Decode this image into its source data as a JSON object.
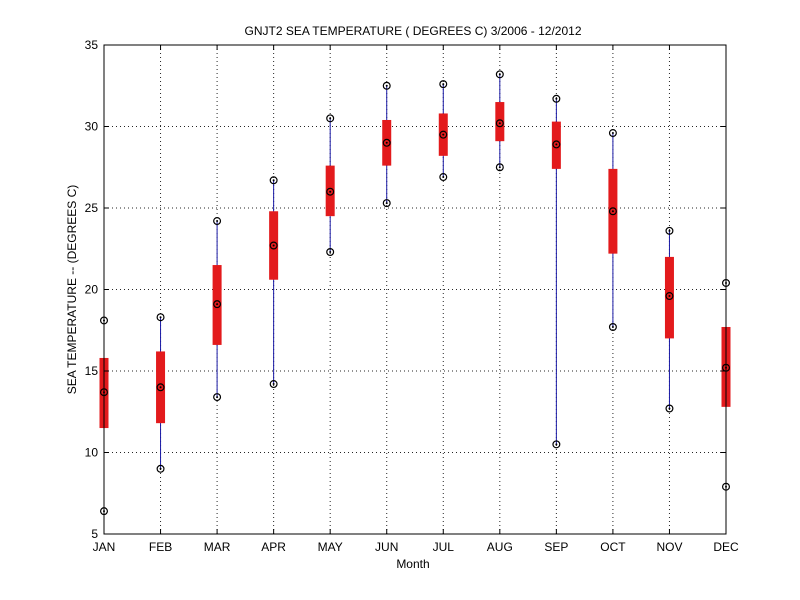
{
  "chart_data": {
    "type": "box",
    "title": "GNJT2  SEA TEMPERATURE ( DEGREES C) 3/2006 - 12/2012",
    "xlabel": "Month",
    "ylabel": "SEA TEMPERATURE -- (DEGREES C)",
    "ylim": [
      5,
      35
    ],
    "yticks": [
      "5",
      "10",
      "15",
      "20",
      "25",
      "30",
      "35"
    ],
    "grid": true,
    "categories": [
      "JAN",
      "FEB",
      "MAR",
      "APR",
      "MAY",
      "JUN",
      "JUL",
      "AUG",
      "SEP",
      "OCT",
      "NOV",
      "DEC"
    ],
    "series": [
      {
        "min": [
          6.4,
          9.0,
          13.4,
          14.2,
          22.3,
          25.3,
          26.9,
          27.5,
          10.5,
          17.7,
          12.7,
          7.9
        ],
        "q1": [
          11.5,
          11.8,
          16.6,
          20.6,
          24.5,
          27.6,
          28.2,
          29.1,
          27.4,
          22.2,
          17.0,
          12.8
        ],
        "median": [
          13.7,
          14.0,
          19.1,
          22.7,
          26.0,
          29.0,
          29.5,
          30.2,
          28.9,
          24.8,
          19.6,
          15.2
        ],
        "q3": [
          15.8,
          16.2,
          21.5,
          24.8,
          27.6,
          30.4,
          30.8,
          31.5,
          30.3,
          27.4,
          22.0,
          17.7
        ],
        "max": [
          18.1,
          18.3,
          24.2,
          26.7,
          30.5,
          32.5,
          32.6,
          33.2,
          31.7,
          29.6,
          23.6,
          20.4
        ]
      }
    ],
    "colors": {
      "box": "#e31a1c",
      "whisker": "#1a1aa6",
      "marker": "#000000"
    }
  }
}
